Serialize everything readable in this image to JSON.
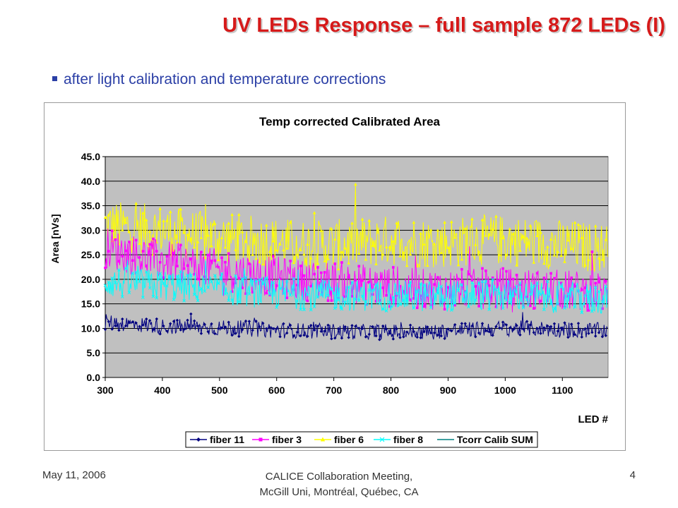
{
  "slide": {
    "title": "UV LEDs Response – full sample 872 LEDs (I)",
    "bullet": "after light calibration and temperature corrections",
    "footer_left": "May 11, 2006",
    "footer_center_line1": "CALICE Collaboration Meeting,",
    "footer_center_line2": "McGill Uni,  Montréal, Québec, CA",
    "footer_right": "4"
  },
  "chart_data": {
    "type": "line",
    "title": "Temp corrected Calibrated Area",
    "xlabel": "LED #",
    "ylabel": "Area [nVs]",
    "xlim": [
      300,
      1180
    ],
    "ylim": [
      0,
      45
    ],
    "x_ticks": [
      "300",
      "400",
      "500",
      "600",
      "700",
      "800",
      "900",
      "1000",
      "1100"
    ],
    "y_ticks": [
      "0.0",
      "5.0",
      "10.0",
      "15.0",
      "20.0",
      "25.0",
      "30.0",
      "35.0",
      "40.0",
      "45.0"
    ],
    "grid": true,
    "plot_background": "#c0c0c0",
    "legend_position": "bottom",
    "series": [
      {
        "name": "fiber 11",
        "color": "#000080",
        "marker": "diamond",
        "x": [
          300,
          350,
          400,
          450,
          500,
          550,
          600,
          650,
          700,
          750,
          800,
          850,
          900,
          950,
          1000,
          1050,
          1100,
          1150,
          1180
        ],
        "y": [
          11.3,
          10.8,
          10.4,
          10.3,
          10.1,
          9.9,
          9.6,
          9.5,
          9.4,
          9.3,
          9.3,
          9.2,
          9.5,
          9.8,
          10.0,
          10.0,
          9.7,
          9.6,
          9.6
        ]
      },
      {
        "name": "fiber 3",
        "color": "#ff00ff",
        "marker": "square",
        "x": [
          300,
          350,
          400,
          450,
          500,
          550,
          600,
          650,
          700,
          750,
          800,
          850,
          900,
          950,
          1000,
          1050,
          1100,
          1150,
          1180
        ],
        "y": [
          26.5,
          25.0,
          23.8,
          22.8,
          22.0,
          21.2,
          20.5,
          19.8,
          19.5,
          19.0,
          18.5,
          18.0,
          18.0,
          18.0,
          18.2,
          18.0,
          17.8,
          17.5,
          17.5
        ]
      },
      {
        "name": "fiber 6",
        "color": "#ffff00",
        "marker": "triangle",
        "x": [
          300,
          350,
          400,
          450,
          500,
          550,
          600,
          650,
          700,
          750,
          800,
          850,
          900,
          950,
          1000,
          1050,
          1100,
          1150,
          1180
        ],
        "y": [
          31.0,
          30.5,
          30.0,
          29.0,
          28.5,
          28.0,
          27.5,
          27.0,
          27.0,
          27.5,
          28.0,
          27.5,
          27.5,
          28.0,
          28.0,
          27.5,
          27.0,
          26.5,
          26.5
        ]
      },
      {
        "name": "fiber 8",
        "color": "#00ffff",
        "marker": "cross",
        "x": [
          300,
          350,
          400,
          450,
          500,
          550,
          600,
          650,
          700,
          750,
          800,
          850,
          900,
          950,
          1000,
          1050,
          1100,
          1150,
          1180
        ],
        "y": [
          19.5,
          19.0,
          18.8,
          18.5,
          18.0,
          17.5,
          17.2,
          17.0,
          16.8,
          16.7,
          16.6,
          16.5,
          16.6,
          16.8,
          16.8,
          16.5,
          16.3,
          16.0,
          16.0
        ]
      },
      {
        "name": "Tcorr Calib SUM",
        "color": "#008080",
        "marker": "none",
        "x": [],
        "y": []
      }
    ]
  }
}
